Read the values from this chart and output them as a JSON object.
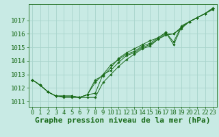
{
  "background_color": "#c8eae4",
  "grid_color": "#a8d4cc",
  "line_color": "#1a6b1a",
  "marker_color": "#1a6b1a",
  "xlabel": "Graphe pression niveau de la mer (hPa)",
  "xlabel_fontsize": 8,
  "xlabel_color": "#1a6b1a",
  "tick_color": "#1a6b1a",
  "tick_fontsize": 6.5,
  "ylim": [
    1010.6,
    1018.2
  ],
  "xlim": [
    -0.5,
    23.5
  ],
  "yticks": [
    1011,
    1012,
    1013,
    1014,
    1015,
    1016,
    1017
  ],
  "xticks": [
    0,
    1,
    2,
    3,
    4,
    5,
    6,
    7,
    8,
    9,
    10,
    11,
    12,
    13,
    14,
    15,
    16,
    17,
    18,
    19,
    20,
    21,
    22,
    23
  ],
  "series": [
    [
      1012.6,
      1012.2,
      1011.7,
      1011.4,
      1011.3,
      1011.3,
      1011.3,
      1011.3,
      1011.3,
      1012.4,
      1013.0,
      1013.6,
      1014.1,
      1014.5,
      1014.9,
      1015.1,
      1015.6,
      1015.9,
      1016.0,
      1016.4,
      1016.9,
      1017.2,
      1017.5,
      1017.8
    ],
    [
      1012.6,
      1012.2,
      1011.7,
      1011.4,
      1011.4,
      1011.4,
      1011.3,
      1011.5,
      1011.6,
      1013.0,
      1013.3,
      1013.9,
      1014.4,
      1014.6,
      1015.0,
      1015.2,
      1015.6,
      1016.0,
      1016.0,
      1016.5,
      1016.9,
      1017.2,
      1017.5,
      1017.9
    ],
    [
      1012.6,
      1012.2,
      1011.7,
      1011.4,
      1011.4,
      1011.4,
      1011.3,
      1011.5,
      1012.4,
      1013.0,
      1013.7,
      1014.1,
      1014.5,
      1014.7,
      1015.1,
      1015.3,
      1015.7,
      1016.1,
      1015.2,
      1016.5,
      1016.9,
      1017.2,
      1017.5,
      1017.9
    ],
    [
      1012.6,
      1012.2,
      1011.7,
      1011.4,
      1011.4,
      1011.4,
      1011.3,
      1011.5,
      1012.6,
      1012.9,
      1013.5,
      1014.2,
      1014.6,
      1014.9,
      1015.2,
      1015.5,
      1015.7,
      1016.1,
      1015.4,
      1016.6,
      1016.9,
      1017.2,
      1017.5,
      1017.9
    ]
  ]
}
